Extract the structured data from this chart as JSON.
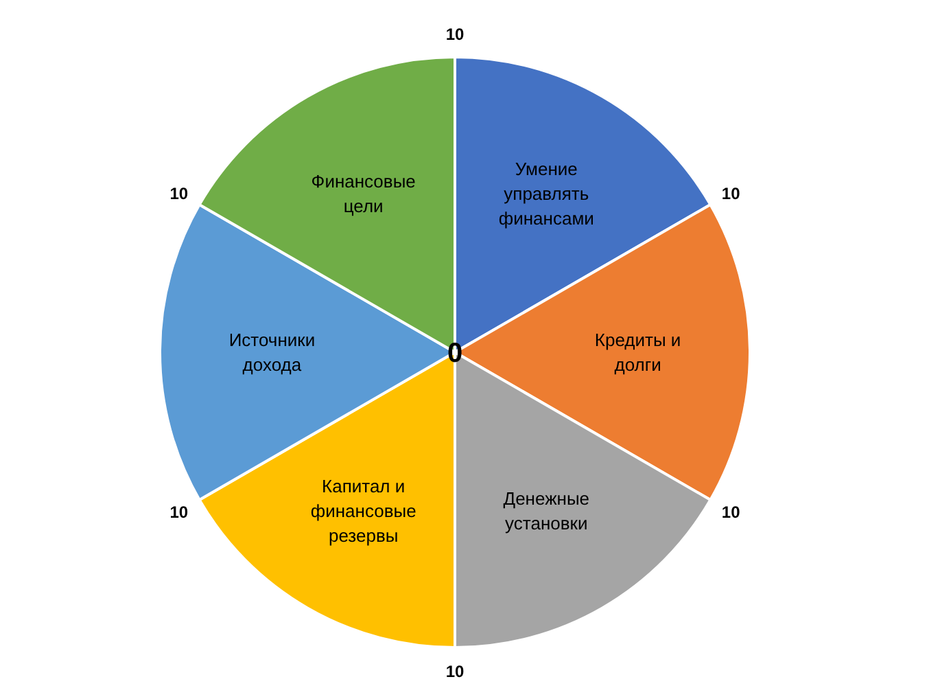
{
  "chart_data": {
    "type": "pie",
    "categories": [
      "Умение управлять финансами",
      "Кредиты и долги",
      "Денежные установки",
      "Капитал и финансовые резервы",
      "Источники дохода",
      "Финансовые цели"
    ],
    "values": [
      16.67,
      16.67,
      16.67,
      16.67,
      16.67,
      16.67
    ],
    "colors": [
      "#4472c4",
      "#ed7d31",
      "#a5a5a5",
      "#ffc000",
      "#5b9bd5",
      "#70ad47"
    ],
    "annotations": [
      "0",
      "10",
      "10",
      "10",
      "10",
      "10",
      "10"
    ]
  }
}
